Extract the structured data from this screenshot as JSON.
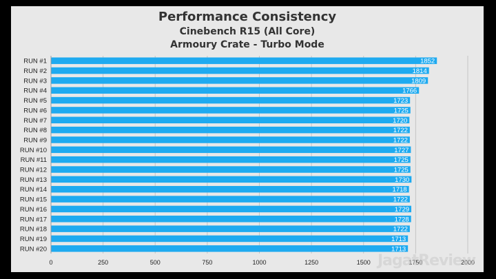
{
  "chart_data": {
    "type": "bar",
    "orientation": "horizontal",
    "title": "Performance Consistency",
    "subtitle_1": "Cinebench R15 (All Core)",
    "subtitle_2": "Armoury Crate - Turbo Mode",
    "categories": [
      "RUN #1",
      "RUN #2",
      "RUN #3",
      "RUN #4",
      "RUN #5",
      "RUN #6",
      "RUN #7",
      "RUN #8",
      "RUN #9",
      "RUN #10",
      "RUN #11",
      "RUN #12",
      "RUN #13",
      "RUN #14",
      "RUN #15",
      "RUN #16",
      "RUN #17",
      "RUN #18",
      "RUN #19",
      "RUN #20"
    ],
    "values": [
      1852,
      1814,
      1809,
      1766,
      1723,
      1725,
      1720,
      1722,
      1722,
      1727,
      1725,
      1725,
      1730,
      1718,
      1722,
      1729,
      1728,
      1722,
      1713,
      1713
    ],
    "xlim": [
      0,
      2000
    ],
    "xticks": [
      0,
      250,
      500,
      750,
      1000,
      1250,
      1500,
      1750,
      2000
    ],
    "grid": "vertical",
    "bar_color": "#1eaaf0",
    "data_labels": "inside-end"
  },
  "watermark": "JagatReview"
}
